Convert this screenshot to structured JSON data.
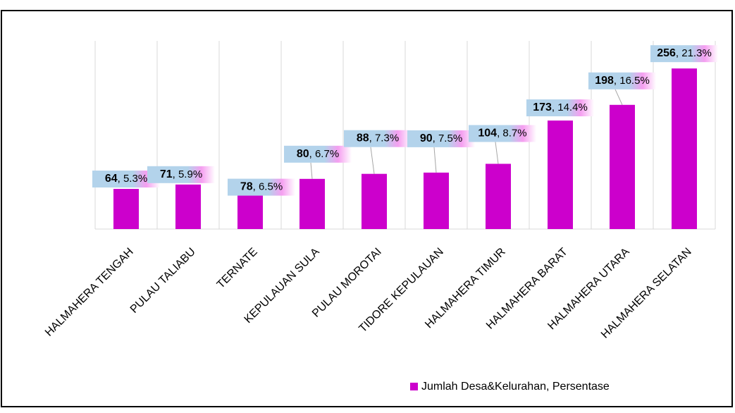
{
  "chart_data": {
    "type": "bar",
    "categories": [
      "HALMAHERA TENGAH",
      "PULAU TALIABU",
      "TERNATE",
      "KEPULAUAN SULA",
      "PULAU MOROTAI",
      "TIDORE KEPULAUAN",
      "HALMAHERA TIMUR",
      "HALMAHERA BARAT",
      "HALMAHERA UTARA",
      "HALMAHERA SELATAN"
    ],
    "series": [
      {
        "name": "Jumlah Desa&Kelurahan, Persentase",
        "color": "#cc00cc",
        "values": [
          64,
          71,
          78,
          80,
          88,
          90,
          104,
          173,
          198,
          256
        ],
        "percent_labels": [
          "5.3%",
          "5.9%",
          "6.5%",
          "6.7%",
          "7.3%",
          "7.5%",
          "8.7%",
          "14.4%",
          "16.5%",
          "21.3%"
        ]
      }
    ],
    "label_separator": ", ",
    "ylim": [
      0,
      300
    ],
    "grid": true
  }
}
